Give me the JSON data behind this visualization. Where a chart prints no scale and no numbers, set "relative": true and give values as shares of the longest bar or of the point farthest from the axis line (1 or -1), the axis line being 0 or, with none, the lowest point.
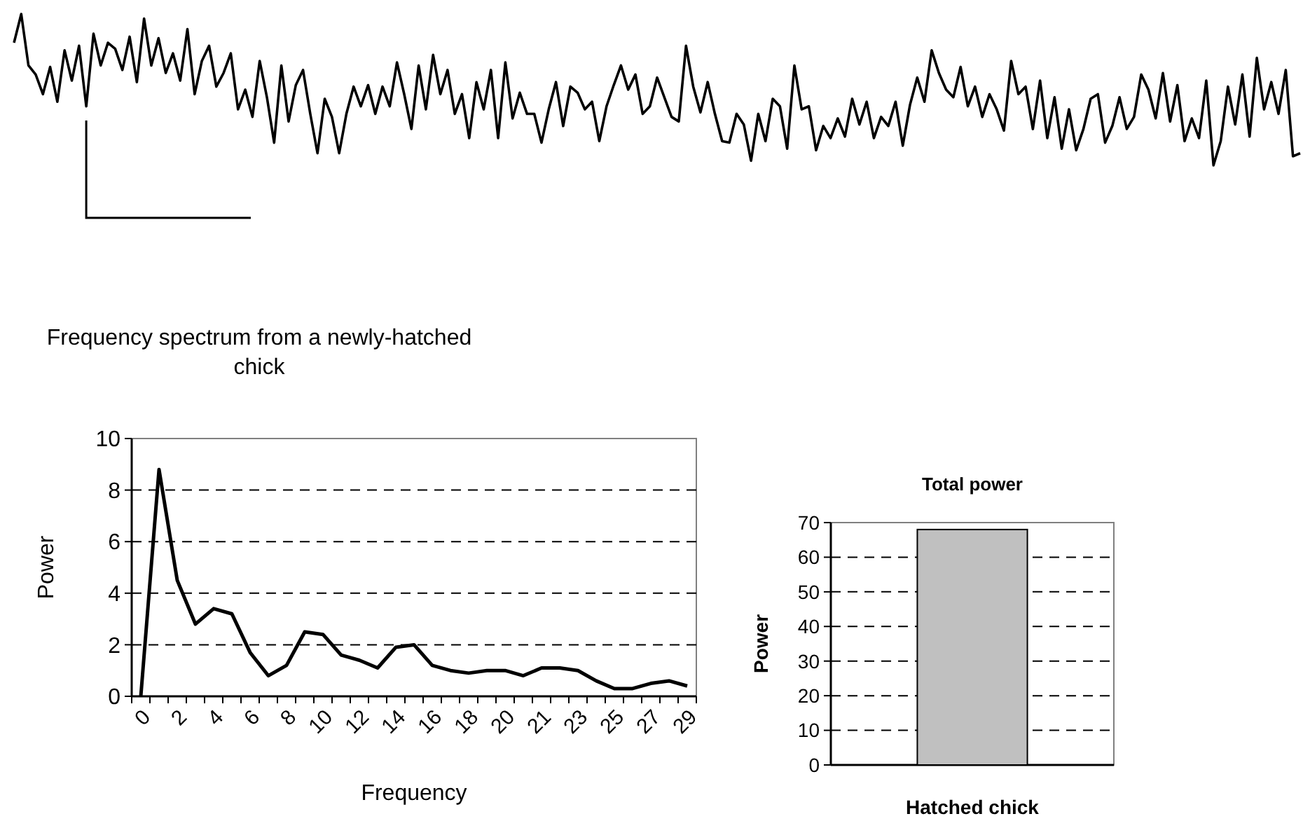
{
  "chart_data": [
    {
      "type": "line",
      "relative": true,
      "marker": "none",
      "categories": [
        null,
        null,
        null,
        null,
        null,
        null,
        null,
        null,
        null,
        null,
        null,
        null,
        null,
        null,
        null,
        null,
        null,
        null,
        null,
        null,
        null,
        null,
        null,
        null,
        null,
        null,
        null,
        null,
        null,
        null,
        null,
        null,
        null,
        null,
        null,
        null,
        null,
        null,
        null,
        null,
        null,
        null,
        null,
        null,
        null,
        null,
        null,
        null,
        null,
        null,
        null,
        null,
        null,
        null,
        null,
        null,
        null,
        null,
        null,
        null,
        null,
        null,
        null,
        null,
        null,
        null,
        null,
        null,
        null,
        null,
        null,
        null,
        null,
        null,
        null,
        null,
        null,
        null,
        null,
        null,
        null,
        null,
        null,
        null,
        null,
        null,
        null,
        null,
        null,
        null,
        null,
        null,
        null,
        null,
        null,
        null,
        null,
        null,
        null,
        null,
        null,
        null,
        null,
        null,
        null,
        null,
        null,
        null,
        null,
        null,
        null,
        null,
        null,
        null,
        null,
        null,
        null,
        null,
        null,
        null,
        null,
        null,
        null,
        null,
        null,
        null,
        null,
        null,
        null,
        null,
        null,
        null,
        null,
        null,
        null,
        null,
        null,
        null,
        null,
        null,
        null,
        null,
        null,
        null,
        null,
        null,
        null,
        null,
        null,
        null,
        null,
        null,
        null,
        null,
        null,
        null,
        null,
        null,
        null,
        null,
        null,
        null,
        null,
        null,
        null,
        null,
        null,
        null,
        null,
        null,
        null,
        null,
        null,
        null,
        null,
        null,
        null,
        null,
        null
      ],
      "series": [
        {
          "color": "#000000",
          "values": [
            0.81,
            1,
            0.66,
            0.6,
            0.47,
            0.65,
            0.42,
            0.76,
            0.56,
            0.79,
            0.39,
            0.87,
            0.66,
            0.81,
            0.77,
            0.63,
            0.85,
            0.55,
            0.97,
            0.66,
            0.84,
            0.61,
            0.74,
            0.56,
            0.9,
            0.47,
            0.69,
            0.79,
            0.52,
            0.61,
            0.74,
            0.37,
            0.5,
            0.32,
            0.69,
            0.45,
            0.15,
            0.66,
            0.29,
            0.53,
            0.63,
            0.34,
            0.08,
            0.44,
            0.32,
            0.08,
            0.34,
            0.52,
            0.39,
            0.53,
            0.34,
            0.52,
            0.39,
            0.68,
            0.47,
            0.24,
            0.66,
            0.37,
            0.73,
            0.47,
            0.63,
            0.34,
            0.47,
            0.18,
            0.55,
            0.37,
            0.63,
            0.18,
            0.68,
            0.31,
            0.48,
            0.34,
            0.34,
            0.15,
            0.37,
            0.55,
            0.26,
            0.52,
            0.48,
            0.37,
            0.42,
            0.16,
            0.39,
            0.53,
            0.66,
            0.5,
            0.6,
            0.34,
            0.39,
            0.58,
            0.45,
            0.32,
            0.29,
            0.79,
            0.52,
            0.35,
            0.55,
            0.34,
            0.16,
            0.15,
            0.34,
            0.27,
            0.03,
            0.34,
            0.16,
            0.44,
            0.39,
            0.11,
            0.66,
            0.37,
            0.39,
            0.1,
            0.26,
            0.18,
            0.31,
            0.19,
            0.44,
            0.27,
            0.42,
            0.18,
            0.32,
            0.26,
            0.42,
            0.13,
            0.4,
            0.58,
            0.42,
            0.76,
            0.61,
            0.5,
            0.45,
            0.65,
            0.39,
            0.52,
            0.32,
            0.47,
            0.37,
            0.23,
            0.69,
            0.47,
            0.52,
            0.24,
            0.56,
            0.18,
            0.45,
            0.11,
            0.37,
            0.1,
            0.24,
            0.44,
            0.47,
            0.15,
            0.26,
            0.45,
            0.24,
            0.32,
            0.6,
            0.5,
            0.31,
            0.61,
            0.29,
            0.53,
            0.16,
            0.31,
            0.18,
            0.56,
            0,
            0.16,
            0.52,
            0.27,
            0.6,
            0.19,
            0.71,
            0.37,
            0.55,
            0.34,
            0.63,
            0.06,
            0.08
          ]
        }
      ]
    },
    {
      "type": "line",
      "title": "Frequency spectrum from a newly-hatched chick",
      "xlabel": "Frequency",
      "ylabel": "Power",
      "marker": "none",
      "grid": "y",
      "categories": [
        "0",
        null,
        "2",
        null,
        "4",
        null,
        "6",
        null,
        "8",
        null,
        "10",
        null,
        "12",
        null,
        "14",
        null,
        "16",
        null,
        "18",
        null,
        "20",
        null,
        "21",
        null,
        "23",
        null,
        "25",
        null,
        "27",
        null,
        "29"
      ],
      "ylim": [
        0,
        10
      ],
      "yticks": [
        0,
        2,
        4,
        6,
        8,
        10
      ],
      "series": [
        {
          "color": "#000000",
          "values": [
            0,
            8.8,
            4.5,
            2.8,
            3.4,
            3.2,
            1.7,
            0.8,
            1.2,
            2.5,
            2.4,
            1.6,
            1.4,
            1.1,
            1.9,
            2,
            1.2,
            1,
            0.9,
            1,
            1,
            0.8,
            1.1,
            1.1,
            1,
            0.6,
            0.3,
            0.3,
            0.5,
            0.6,
            0.4
          ]
        }
      ]
    },
    {
      "type": "bar",
      "title": "Total power",
      "xlabel": "Hatched chick",
      "ylabel": "Power",
      "grid": "y",
      "categories": [
        null
      ],
      "values": [
        68
      ],
      "color": "#c0c0c0",
      "ylim": [
        0,
        70
      ],
      "yticks": [
        0,
        10,
        20,
        30,
        40,
        50,
        60,
        70
      ]
    }
  ]
}
